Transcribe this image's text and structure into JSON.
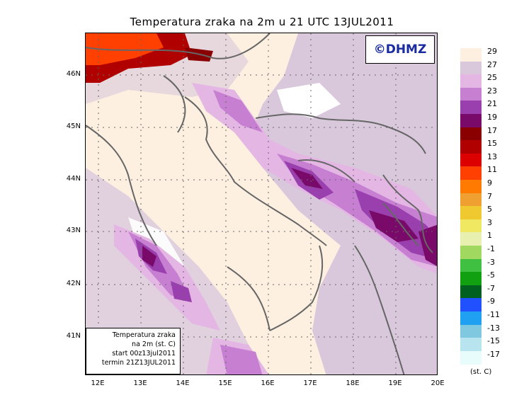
{
  "title": "Temperatura zraka na 2m u 21 UTC 13JUL2011",
  "logo_text": "©DHMZ",
  "info_box": {
    "line1": "Temperatura zraka",
    "line2": "na 2m (st. C)",
    "line3": "start 00z13jul2011",
    "line4": "termin 21Z13JUL2011"
  },
  "lat_labels": [
    "46N",
    "45N",
    "44N",
    "43N",
    "42N",
    "41N"
  ],
  "lon_labels": [
    "12E",
    "13E",
    "14E",
    "15E",
    "16E",
    "17E",
    "18E",
    "19E",
    "20E"
  ],
  "legend": {
    "unit": "(st. C)",
    "labels": [
      "29",
      "27",
      "25",
      "23",
      "21",
      "19",
      "17",
      "15",
      "13",
      "11",
      "9",
      "7",
      "5",
      "3",
      "1",
      "-1",
      "-3",
      "-5",
      "-7",
      "-9",
      "-11",
      "-13",
      "-15",
      "-17"
    ],
    "colors": [
      "#fdf0e0",
      "#d9c8dc",
      "#e4b6e4",
      "#c77fd2",
      "#9a3fae",
      "#7a0a6a",
      "#8a0000",
      "#b00000",
      "#dc0000",
      "#ff4000",
      "#ff7a00",
      "#f0a030",
      "#f0c830",
      "#f0e860",
      "#e8f0b0",
      "#a0d860",
      "#40c040",
      "#10a010",
      "#006020",
      "#2050ff",
      "#20a0f0",
      "#80c8e0",
      "#b8e4f0",
      "#e8fcfc"
    ]
  }
}
